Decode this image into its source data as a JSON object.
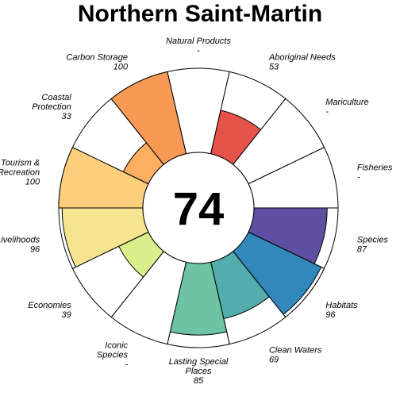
{
  "chart_data": {
    "type": "flower",
    "title": "Northern Saint-Martin",
    "center_score": "74",
    "max_value": 100,
    "petals": [
      {
        "name": "Natural Products",
        "label_lines": [
          "Natural Products"
        ],
        "score": "-",
        "value": null,
        "color": "#9E0142"
      },
      {
        "name": "Aboriginal Needs",
        "label_lines": [
          "Aboriginal Needs"
        ],
        "score": "53",
        "value": 53,
        "color": "#E4534A"
      },
      {
        "name": "Mariculture",
        "label_lines": [
          "Mariculture"
        ],
        "score": "-",
        "value": null,
        "color": "#F46D43"
      },
      {
        "name": "Fisheries",
        "label_lines": [
          "Fisheries"
        ],
        "score": "-",
        "value": null,
        "color": "#F46D43"
      },
      {
        "name": "Species",
        "label_lines": [
          "Species"
        ],
        "score": "87",
        "value": 87,
        "color": "#5E4FA2"
      },
      {
        "name": "Habitats",
        "label_lines": [
          "Habitats"
        ],
        "score": "96",
        "value": 96,
        "color": "#3288BD"
      },
      {
        "name": "Clean Waters",
        "label_lines": [
          "Clean Waters"
        ],
        "score": "69",
        "value": 69,
        "color": "#53ADAC"
      },
      {
        "name": "Lasting Special Places",
        "label_lines": [
          "Lasting Special",
          "Places"
        ],
        "score": "85",
        "value": 85,
        "color": "#6CC4A4"
      },
      {
        "name": "Iconic Species",
        "label_lines": [
          "Iconic",
          "Species"
        ],
        "score": "-",
        "value": null,
        "color": "#ABDDA4"
      },
      {
        "name": "Economies",
        "label_lines": [
          "Economies"
        ],
        "score": "39",
        "value": 39,
        "color": "#D9EF8B"
      },
      {
        "name": "Livelihoods",
        "label_lines": [
          "Livelihoods"
        ],
        "score": "96",
        "value": 96,
        "color": "#F6E590"
      },
      {
        "name": "Tourism & Recreation",
        "label_lines": [
          "Tourism &",
          "Recreation"
        ],
        "score": "100",
        "value": 100,
        "color": "#FDCF7D"
      },
      {
        "name": "Coastal Protection",
        "label_lines": [
          "Coastal",
          "Protection"
        ],
        "score": "33",
        "value": 33,
        "color": "#FDAE61"
      },
      {
        "name": "Carbon Storage",
        "label_lines": [
          "Carbon Storage"
        ],
        "score": "100",
        "value": 100,
        "color": "#F89A56"
      }
    ]
  }
}
